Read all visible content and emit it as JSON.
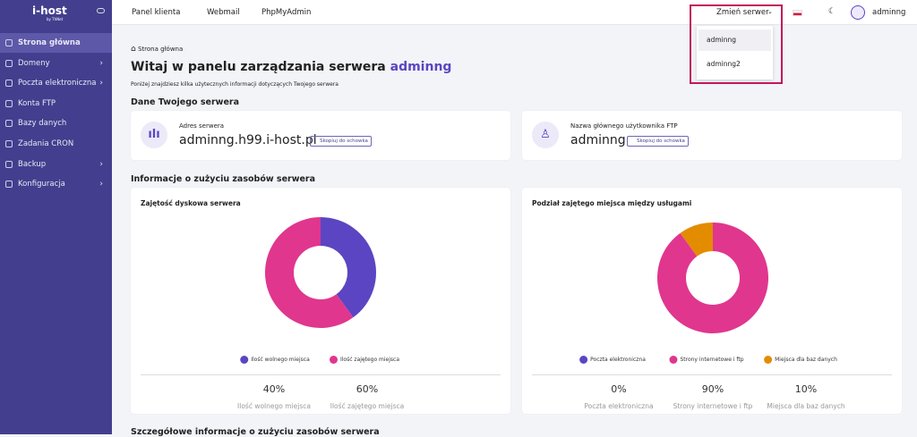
{
  "sidebar": {
    "logo": "i-host",
    "logo_sub": "by ThNet",
    "menu": [
      {
        "label": "Strona główna",
        "arrow": false
      },
      {
        "label": "Domeny",
        "arrow": true
      },
      {
        "label": "Poczta elektroniczna",
        "arrow": true
      },
      {
        "label": "Konta FTP",
        "arrow": false
      },
      {
        "label": "Bazy danych",
        "arrow": false
      },
      {
        "label": "Zadania CRON",
        "arrow": false
      },
      {
        "label": "Backup",
        "arrow": true
      },
      {
        "label": "Konfiguracja",
        "arrow": true
      }
    ]
  },
  "topbar": {
    "links": [
      "Panel klienta",
      "Webmail",
      "PhpMyAdmin"
    ],
    "server_switch": "Zmień serwer",
    "user": "adminng",
    "server_menu": [
      "adminng",
      "adminng2"
    ]
  },
  "content": {
    "breadcrumb": "Strona główna",
    "heading": "Witaj w panelu zarządzania serwera",
    "heading_user": "adminng",
    "subtitle": "Poniżej znajdziesz kilka użytecznych informacji dotyczących Twojego serwera",
    "section1": "Dane Twojego serwera",
    "cards": [
      {
        "label": "Adres serwera",
        "value": "adminng.h99.i-host.pl",
        "button": "Skopiuj do schowka"
      },
      {
        "label": "Nazwa głównego użytkownika FTP",
        "value": "adminng",
        "button": "Skopiuj do schowka"
      }
    ],
    "section2": "Informacje o zużyciu zasobów serwera",
    "section3": "Szczegółowe informacje o zużyciu zasobów serwera"
  },
  "charts": [
    {
      "type": "donut",
      "title": "Zajętość dyskowa serwera",
      "series": [
        {
          "name": "Ilość wolnego miejsca",
          "color": "#5b45c2",
          "value": 40,
          "value_label": "40%"
        },
        {
          "name": "Ilość zajętego miejsca",
          "color": "#e0368e",
          "value": 60,
          "value_label": "60%"
        }
      ]
    },
    {
      "type": "donut",
      "title": "Podział zajętego miejsca między usługami",
      "series": [
        {
          "name": "Poczta elektroniczna",
          "color": "#5b45c2",
          "value": 0,
          "value_label": "0%"
        },
        {
          "name": "Strony internetowe i ftp",
          "color": "#e0368e",
          "value": 90,
          "value_label": "90%"
        },
        {
          "name": "Miejsca dla baz danych",
          "color": "#e38c00",
          "value": 10,
          "value_label": "10%"
        }
      ]
    }
  ]
}
